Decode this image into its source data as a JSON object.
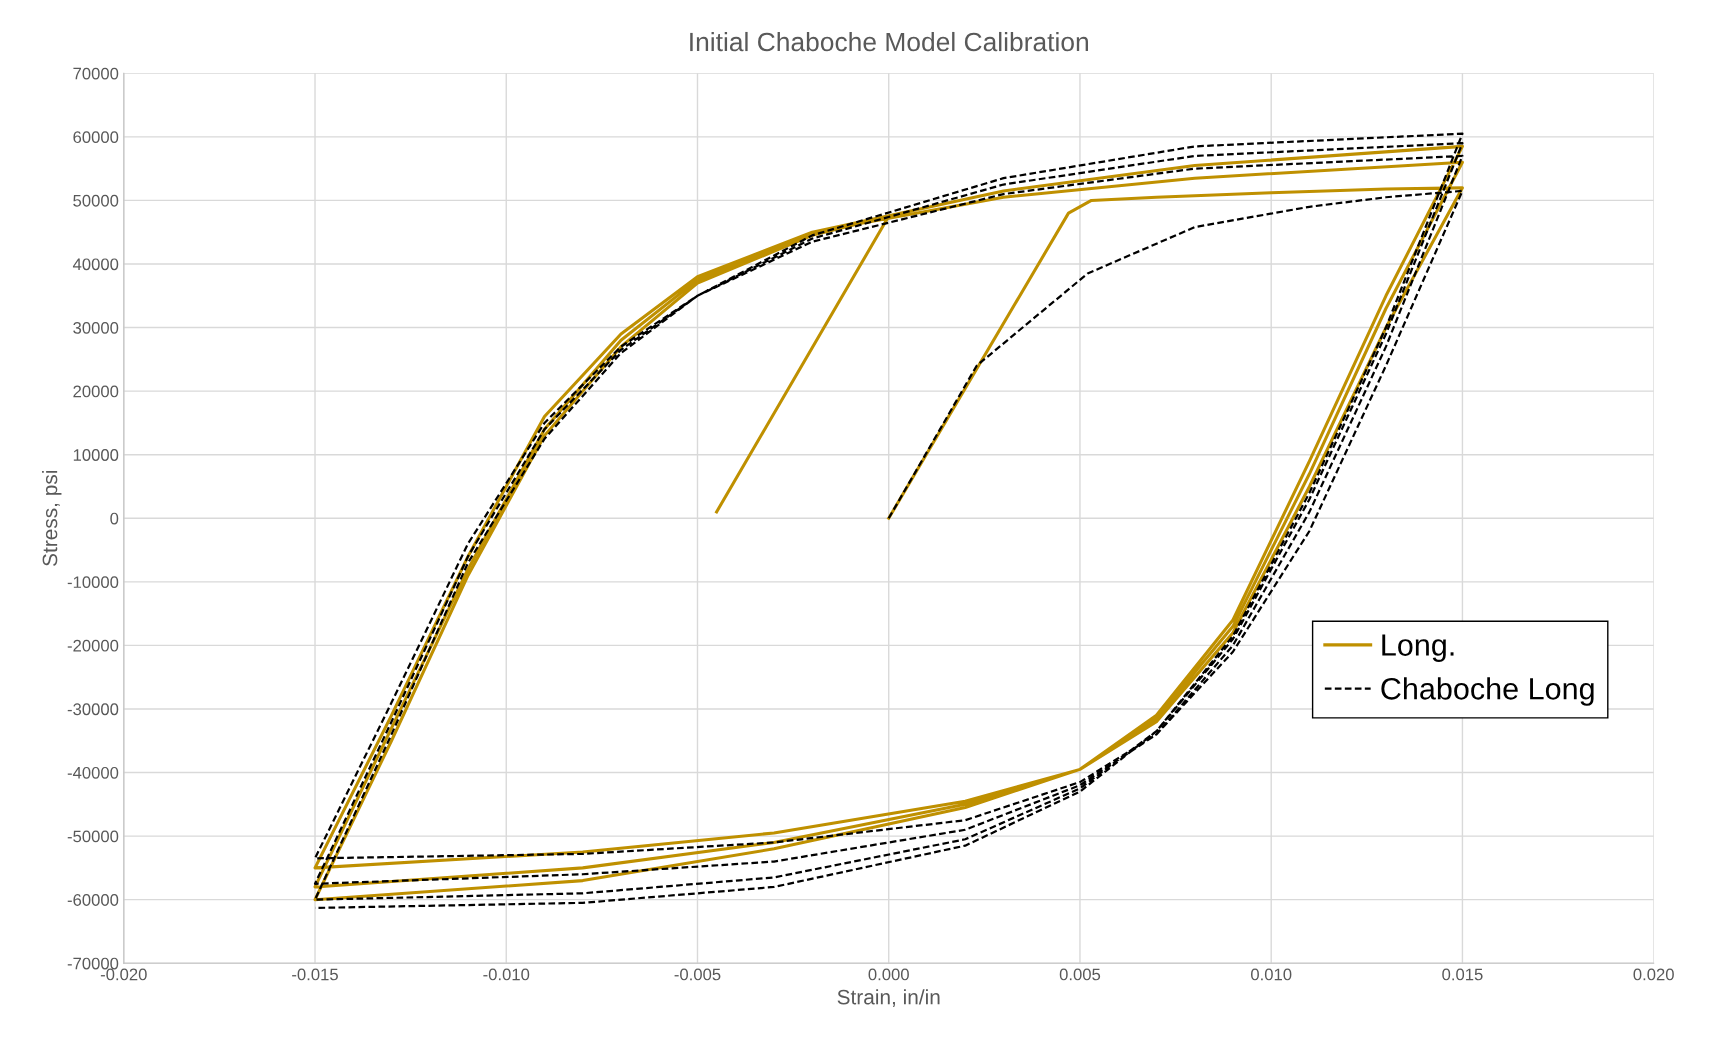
{
  "chart_data": {
    "type": "line",
    "title": "Initial Chaboche Model Calibration",
    "xlabel": "Strain, in/in",
    "ylabel": "Stress, psi",
    "xlim": [
      -0.02,
      0.02
    ],
    "ylim": [
      -70000,
      70000
    ],
    "xticks": [
      {
        "value": -0.02,
        "label": "-0.020"
      },
      {
        "value": -0.015,
        "label": "-0.015"
      },
      {
        "value": -0.01,
        "label": "-0.010"
      },
      {
        "value": -0.005,
        "label": "-0.005"
      },
      {
        "value": 0,
        "label": "0.000"
      },
      {
        "value": 0.005,
        "label": "0.005"
      },
      {
        "value": 0.01,
        "label": "0.010"
      },
      {
        "value": 0.015,
        "label": "0.015"
      },
      {
        "value": 0.02,
        "label": "0.020"
      }
    ],
    "yticks": [
      -70000,
      -60000,
      -50000,
      -40000,
      -30000,
      -20000,
      -10000,
      0,
      10000,
      20000,
      30000,
      40000,
      50000,
      60000,
      70000
    ],
    "grid": true,
    "legend": "right",
    "marker": "none",
    "series": [
      {
        "name": "Long.",
        "color": "#bf9000",
        "line_style": "solid",
        "x": [
          0,
          0.0047,
          0.0053,
          0.007,
          0.01,
          0.013,
          0.015,
          0.013,
          0.011,
          0.009,
          0.007,
          0.005,
          0.002,
          -0.003,
          -0.008,
          -0.015,
          -0.013,
          -0.011,
          -0.009,
          -0.007,
          -0.005,
          -0.002,
          0.003,
          0.008,
          0.015,
          0.013,
          0.011,
          0.009,
          0.007,
          0.005,
          0.002,
          -0.003,
          -0.008,
          -0.015,
          -0.013,
          -0.011,
          -0.009,
          -0.007,
          -0.005,
          -0.002,
          0.003,
          0.008,
          0.015,
          0.013,
          0.011,
          0.009,
          0.007,
          0.005,
          0.002,
          -0.003,
          -0.008,
          -0.015,
          -0.013,
          -0.011,
          -0.009,
          -0.007,
          -0.005,
          -0.002,
          0,
          -0.0045
        ],
        "values": [
          0,
          48000,
          50000,
          50500,
          51200,
          51800,
          52000,
          30000,
          5000,
          -18000,
          -32000,
          -39500,
          -44500,
          -49500,
          -52500,
          -55000,
          -31000,
          -6000,
          16000,
          29000,
          38000,
          45000,
          50500,
          53500,
          56000,
          33000,
          7000,
          -17000,
          -31500,
          -39500,
          -45000,
          -51000,
          -55000,
          -58000,
          -33000,
          -8000,
          14000,
          28000,
          37500,
          45000,
          51500,
          55500,
          58500,
          35000,
          9000,
          -16000,
          -31000,
          -39500,
          -45500,
          -52000,
          -57000,
          -60000,
          -35000,
          -9000,
          13000,
          27000,
          37000,
          44500,
          47500,
          1000
        ]
      },
      {
        "name": "Chaboche Long",
        "color": "#000000",
        "line_style": "dashed",
        "x": [
          0,
          0.0023,
          0.0052,
          0.008,
          0.011,
          0.013,
          0.015,
          0.013,
          0.011,
          0.009,
          0.007,
          0.005,
          0.002,
          -0.003,
          -0.008,
          -0.015,
          -0.013,
          -0.011,
          -0.009,
          -0.007,
          -0.005,
          -0.002,
          0.003,
          0.008,
          0.015,
          0.013,
          0.011,
          0.009,
          0.007,
          0.005,
          0.002,
          -0.003,
          -0.008,
          -0.015,
          -0.013,
          -0.011,
          -0.009,
          -0.007,
          -0.005,
          -0.002,
          0.003,
          0.008,
          0.015,
          0.013,
          0.011,
          0.009,
          0.007,
          0.005,
          0.002,
          -0.003,
          -0.008,
          -0.015,
          -0.013,
          -0.011,
          -0.009,
          -0.007,
          -0.005,
          -0.002,
          0.003,
          0.008,
          0.015,
          0.013,
          0.011,
          0.009,
          0.007,
          0.005,
          0.002,
          -0.003,
          -0.008,
          -0.015
        ],
        "values": [
          0,
          24000,
          38500,
          45800,
          49000,
          50500,
          51500,
          24000,
          -2000,
          -21000,
          -34000,
          -41500,
          -47500,
          -51000,
          -52800,
          -53500,
          -29000,
          -4000,
          15000,
          27000,
          35000,
          43500,
          51000,
          55000,
          57000,
          27000,
          1000,
          -20000,
          -34000,
          -42000,
          -49000,
          -54000,
          -56000,
          -57500,
          -32000,
          -6000,
          14000,
          26500,
          35000,
          44000,
          52500,
          57000,
          59000,
          29000,
          3000,
          -19000,
          -33500,
          -42500,
          -50500,
          -56500,
          -59000,
          -60000,
          -34000,
          -7000,
          12500,
          26000,
          35000,
          44500,
          53500,
          58500,
          60500,
          30000,
          4000,
          -18500,
          -33500,
          -43000,
          -51500,
          -58000,
          -60500,
          -61300
        ]
      }
    ]
  }
}
